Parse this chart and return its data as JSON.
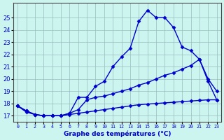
{
  "main_x": [
    0,
    1,
    2,
    3,
    4,
    5,
    6,
    7,
    8,
    9,
    10,
    11,
    12,
    13,
    14,
    15,
    16,
    17,
    18,
    19,
    20,
    21,
    22,
    23
  ],
  "main_y": [
    17.8,
    17.4,
    17.1,
    17.0,
    17.0,
    17.0,
    17.2,
    18.5,
    18.5,
    19.4,
    19.8,
    21.0,
    21.8,
    22.5,
    24.7,
    25.6,
    25.0,
    25.0,
    24.2,
    22.6,
    22.3,
    21.6,
    20.0,
    19.0
  ],
  "line2_x": [
    0,
    1,
    2,
    3,
    4,
    5,
    6,
    7,
    8,
    9,
    10,
    11,
    12,
    13,
    14,
    15,
    16,
    17,
    18,
    19,
    20,
    21,
    22,
    23
  ],
  "line2_y": [
    17.8,
    17.4,
    17.1,
    17.0,
    17.0,
    17.0,
    17.2,
    17.5,
    18.3,
    18.5,
    18.6,
    18.8,
    19.0,
    19.2,
    19.5,
    19.7,
    20.0,
    20.3,
    20.5,
    20.8,
    21.1,
    21.6,
    19.8,
    18.3
  ],
  "line3_x": [
    0,
    1,
    2,
    3,
    4,
    5,
    6,
    7,
    8,
    9,
    10,
    11,
    12,
    13,
    14,
    15,
    16,
    17,
    18,
    19,
    20,
    21,
    22,
    23
  ],
  "line3_y": [
    17.8,
    17.3,
    17.1,
    17.0,
    17.0,
    17.0,
    17.1,
    17.2,
    17.3,
    17.4,
    17.5,
    17.6,
    17.7,
    17.8,
    17.9,
    17.95,
    18.0,
    18.05,
    18.1,
    18.15,
    18.2,
    18.25,
    18.3,
    18.3
  ],
  "background_color": "#cdf5f0",
  "line_color": "#0000cc",
  "grid_color": "#99bbbb",
  "xlabel": "Graphe des températures (°C)",
  "xlim": [
    -0.5,
    23.5
  ],
  "ylim": [
    16.5,
    26.2
  ],
  "yticks": [
    17,
    18,
    19,
    20,
    21,
    22,
    23,
    24,
    25
  ],
  "xtick_labels": [
    "0",
    "1",
    "2",
    "3",
    "4",
    "5",
    "6",
    "7",
    "8",
    "9",
    "10",
    "11",
    "12",
    "13",
    "14",
    "15",
    "16",
    "17",
    "18",
    "19",
    "20",
    "21",
    "22",
    "23"
  ],
  "marker": "D",
  "markersize": 2.5,
  "linewidth": 1.0
}
